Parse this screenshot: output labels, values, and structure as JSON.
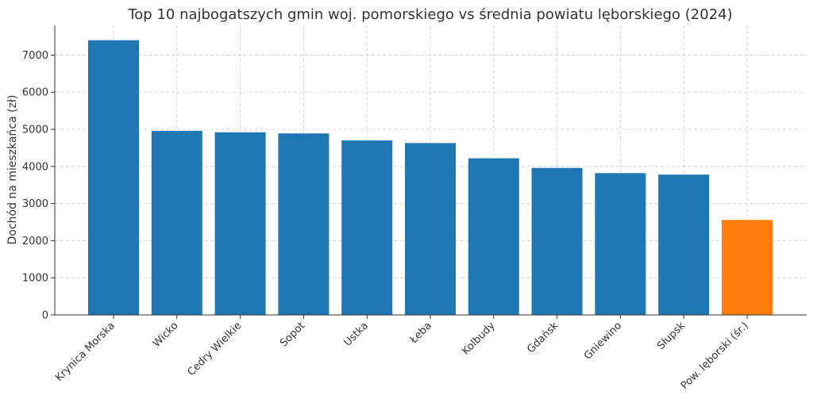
{
  "chart_data": {
    "type": "bar",
    "title": "Top 10 najbogatszych gmin woj. pomorskiego vs średnia powiatu lęborskiego (2024)",
    "xlabel": "",
    "ylabel": "Dochód na mieszkańca (zł)",
    "categories": [
      "Krynica Morska",
      "Wicko",
      "Cedry Wielkie",
      "Sopot",
      "Ustka",
      "Łeba",
      "Kolbudy",
      "Gdańsk",
      "Gniewino",
      "Słupsk",
      "Pow. lęborski (śr.)"
    ],
    "values": [
      7400,
      4960,
      4920,
      4890,
      4700,
      4630,
      4220,
      3960,
      3820,
      3780,
      2560
    ],
    "bar_colors": [
      "#1f77b4",
      "#1f77b4",
      "#1f77b4",
      "#1f77b4",
      "#1f77b4",
      "#1f77b4",
      "#1f77b4",
      "#1f77b4",
      "#1f77b4",
      "#1f77b4",
      "#ff7f0e"
    ],
    "ylim": [
      0,
      7800
    ],
    "yticks": [
      0,
      1000,
      2000,
      3000,
      4000,
      5000,
      6000,
      7000
    ],
    "grid": true,
    "legend": false
  }
}
